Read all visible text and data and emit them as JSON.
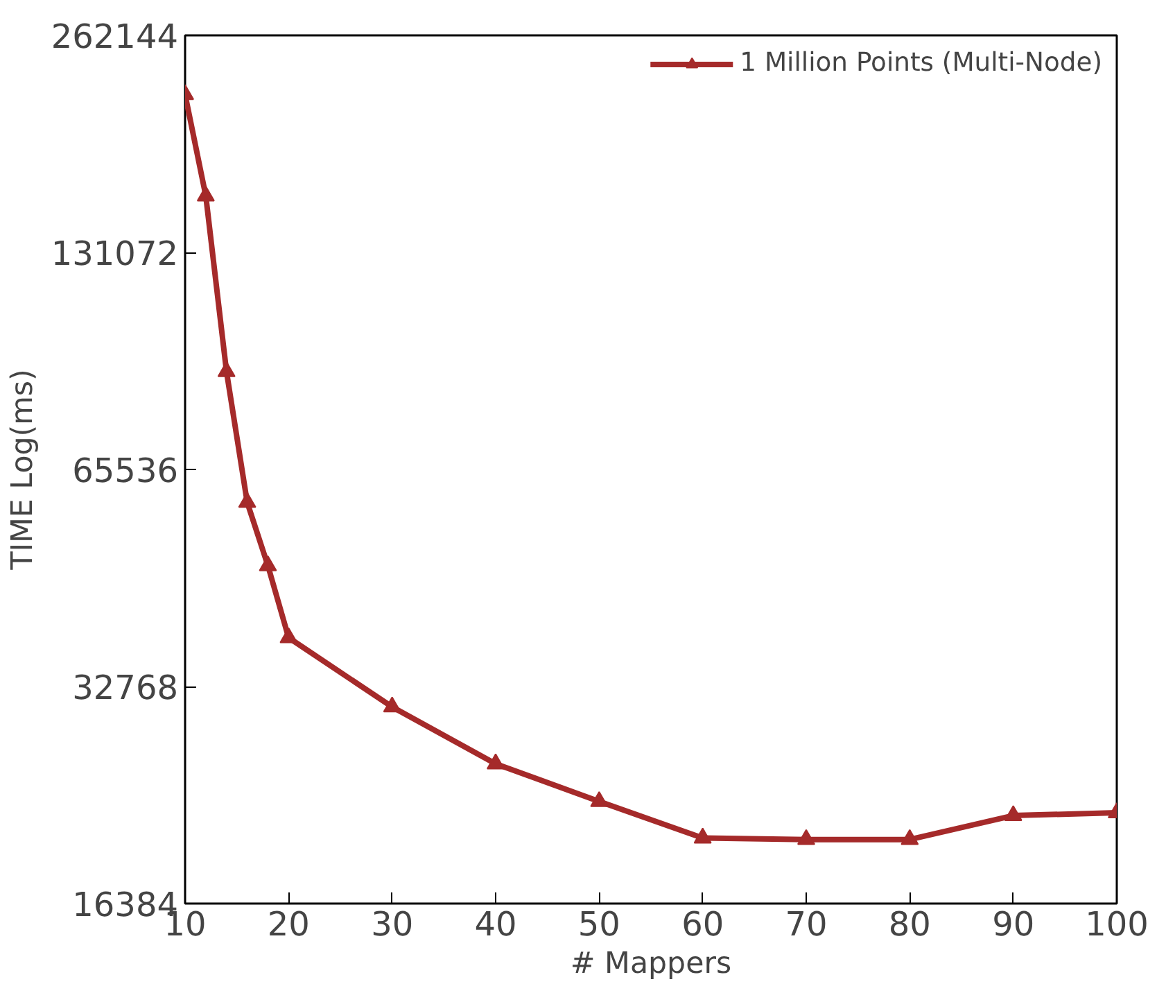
{
  "chart_data": {
    "type": "line",
    "xlabel": "# Mappers",
    "ylabel": "TIME Log(ms)",
    "x": [
      10,
      12,
      14,
      16,
      18,
      20,
      30,
      40,
      50,
      60,
      70,
      80,
      90,
      100
    ],
    "series": [
      {
        "name": "1 Million Points (Multi-Node)",
        "color": "#a52a2a",
        "values": [
          217000,
          157000,
          89600,
          59000,
          48200,
          38300,
          30700,
          25600,
          22700,
          20200,
          20100,
          20100,
          21700,
          21900
        ]
      }
    ],
    "xlim": [
      10,
      100
    ],
    "xticks": [
      10,
      20,
      30,
      40,
      50,
      60,
      70,
      80,
      90,
      100
    ],
    "ylim": [
      16384,
      262144
    ],
    "yticks": [
      16384,
      32768,
      65536,
      131072,
      262144
    ],
    "log": "y",
    "grid": false,
    "legend": "top right",
    "marker": "triangle",
    "line_style": "solid"
  }
}
